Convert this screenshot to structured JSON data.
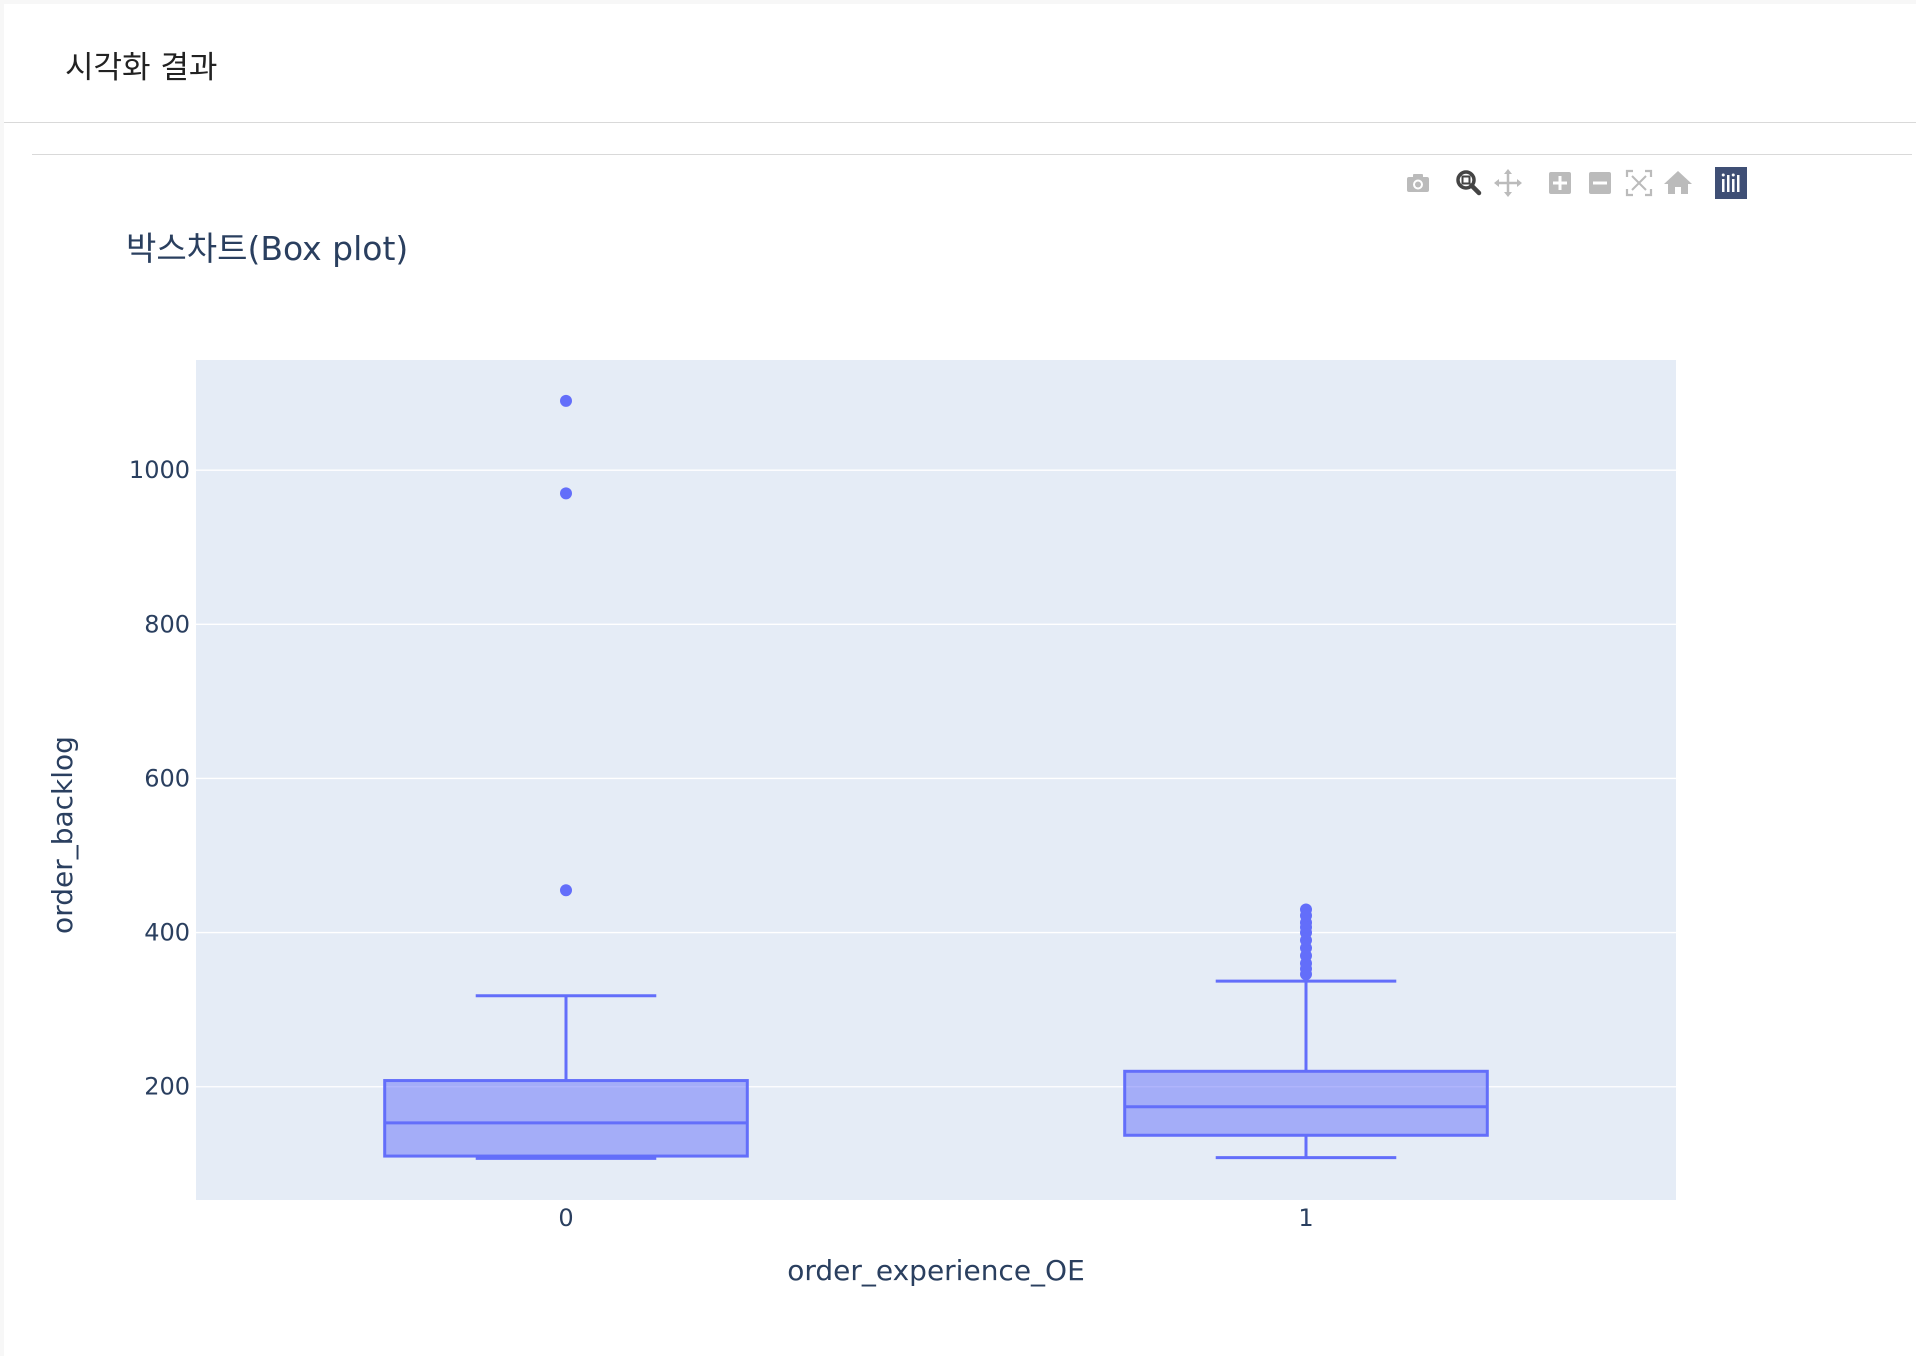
{
  "panel": {
    "title": "시각화 결과"
  },
  "modebar": {
    "buttons": [
      {
        "name": "camera-icon",
        "active": false
      },
      {
        "name": "zoom-icon",
        "active": true
      },
      {
        "name": "pan-icon",
        "active": false
      },
      {
        "name": "zoom-in-icon",
        "active": false
      },
      {
        "name": "zoom-out-icon",
        "active": false
      },
      {
        "name": "autoscale-icon",
        "active": false
      },
      {
        "name": "home-icon",
        "active": false
      },
      {
        "name": "plotly-logo-icon",
        "active": false
      }
    ]
  },
  "colors": {
    "plot_bg": "#e5ecf6",
    "grid": "#ffffff",
    "box_line": "#636efa",
    "box_fill": "rgba(99,110,250,0.5)",
    "text": "#2a3f5f",
    "modebar_icon": "#bbbbbb",
    "modebar_active": "#444444",
    "logo_bg": "#3f4f75"
  },
  "chart_data": {
    "type": "box",
    "title": "박스차트(Box plot)",
    "xlabel": "order_experience_OE",
    "ylabel": "order_backlog",
    "categories": [
      "0",
      "1"
    ],
    "ylim": [
      53,
      1143
    ],
    "yticks": [
      200,
      400,
      600,
      800,
      1000
    ],
    "grid": true,
    "boxes": [
      {
        "category": "0",
        "lower_fence": 107,
        "q1": 110,
        "median": 153,
        "q3": 208,
        "upper_fence": 318,
        "outliers": [
          455,
          970,
          1090
        ]
      },
      {
        "category": "1",
        "lower_fence": 108,
        "q1": 137,
        "median": 174,
        "q3": 220,
        "upper_fence": 337,
        "outliers": [
          346,
          353,
          360,
          370,
          380,
          390,
          400,
          407,
          413,
          422,
          430
        ]
      }
    ]
  }
}
